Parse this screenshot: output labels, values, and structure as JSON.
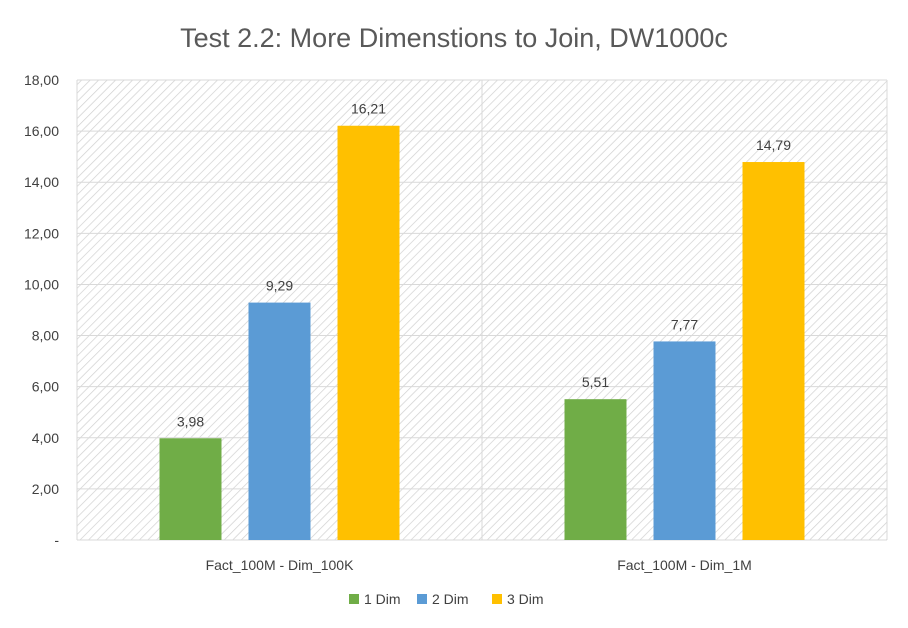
{
  "chart_data": {
    "type": "bar",
    "title": "Test 2.2: More Dimenstions to Join, DW1000c",
    "categories": [
      "Fact_100M - Dim_100K",
      "Fact_100M - Dim_1M"
    ],
    "series": [
      {
        "name": "1 Dim",
        "color": "#70AD47",
        "values": [
          3.98,
          5.51
        ],
        "labels": [
          "3,98",
          "5,51"
        ]
      },
      {
        "name": "2 Dim",
        "color": "#5B9BD5",
        "values": [
          9.29,
          7.77
        ],
        "labels": [
          "9,29",
          "7,77"
        ]
      },
      {
        "name": "3 Dim",
        "color": "#FFC000",
        "values": [
          16.21,
          14.79
        ],
        "labels": [
          "16,21",
          "14,79"
        ]
      }
    ],
    "ylim": [
      0,
      18
    ],
    "yticks": [
      0,
      2,
      4,
      6,
      8,
      10,
      12,
      14,
      16,
      18
    ],
    "ytick_labels": [
      "-",
      "2,00",
      "4,00",
      "6,00",
      "8,00",
      "10,00",
      "12,00",
      "14,00",
      "16,00",
      "18,00"
    ],
    "grid": true,
    "plot_background": "hatched",
    "legend_position": "bottom"
  }
}
